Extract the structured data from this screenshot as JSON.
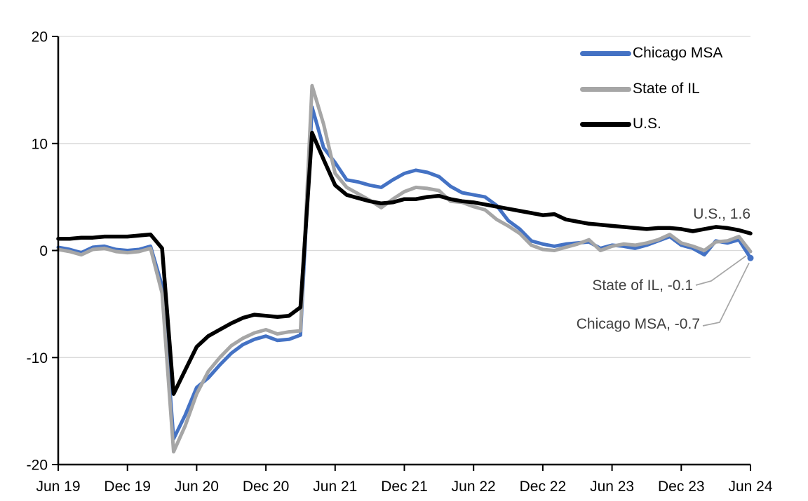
{
  "chart_data": {
    "type": "line",
    "title": "",
    "frequency": "monthly",
    "x_start": "Jun 2019",
    "x_end": "Jun 2024",
    "x_range_months": 60,
    "ylim": [
      -20,
      20
    ],
    "y_ticks": [
      20,
      10,
      0,
      -10,
      -20
    ],
    "y_tick_labels": [
      "20",
      "10",
      "0",
      "-10",
      "-20"
    ],
    "x_tick_labels": [
      "Jun 19",
      "Dec 19",
      "Jun 20",
      "Dec 20",
      "Jun 21",
      "Dec 21",
      "Jun 22",
      "Dec 22",
      "Jun 23",
      "Dec 23",
      "Jun 24"
    ],
    "grid": true,
    "legend_position": "top-right",
    "colors": {
      "grid": "#D9D9D9",
      "axis": "#000000",
      "leader": "#A6A6A6",
      "annotation_text": "#404040"
    },
    "series": [
      {
        "name": "Chicago MSA",
        "color": "#4472C4",
        "stroke_width": 5,
        "end_dot": true,
        "values": [
          0.3,
          0.1,
          -0.2,
          0.3,
          0.4,
          0.1,
          0.0,
          0.1,
          0.4,
          -3.3,
          -17.6,
          -15.4,
          -12.8,
          -11.9,
          -10.7,
          -9.6,
          -8.8,
          -8.3,
          -8.0,
          -8.4,
          -8.3,
          -7.9,
          13.4,
          9.6,
          8.2,
          6.6,
          6.4,
          6.1,
          5.9,
          6.6,
          7.2,
          7.5,
          7.3,
          6.9,
          6.0,
          5.4,
          5.2,
          5.0,
          4.2,
          2.8,
          2.0,
          0.9,
          0.6,
          0.4,
          0.6,
          0.7,
          0.8,
          0.2,
          0.5,
          0.4,
          0.2,
          0.5,
          0.9,
          1.3,
          0.5,
          0.2,
          -0.4,
          0.9,
          0.7,
          1.0,
          -0.7
        ]
      },
      {
        "name": "State of IL",
        "color": "#A6A6A6",
        "stroke_width": 5,
        "end_dot": false,
        "values": [
          0.1,
          -0.1,
          -0.4,
          0.1,
          0.2,
          -0.1,
          -0.2,
          -0.1,
          0.2,
          -4.0,
          -18.8,
          -16.4,
          -13.4,
          -11.3,
          -10.0,
          -8.9,
          -8.2,
          -7.7,
          -7.4,
          -7.8,
          -7.6,
          -7.5,
          15.4,
          11.8,
          7.2,
          5.9,
          5.3,
          4.7,
          4.0,
          4.8,
          5.5,
          5.9,
          5.8,
          5.6,
          4.6,
          4.5,
          4.1,
          3.8,
          2.9,
          2.3,
          1.6,
          0.5,
          0.1,
          0.0,
          0.3,
          0.6,
          1.0,
          0.0,
          0.4,
          0.6,
          0.5,
          0.7,
          1.0,
          1.5,
          0.7,
          0.4,
          0.0,
          0.8,
          0.9,
          1.3,
          -0.1
        ]
      },
      {
        "name": "U.S.",
        "color": "#000000",
        "stroke_width": 5.5,
        "end_dot": false,
        "values": [
          1.1,
          1.1,
          1.2,
          1.2,
          1.3,
          1.3,
          1.3,
          1.4,
          1.5,
          0.2,
          -13.4,
          -11.2,
          -9.0,
          -8.0,
          -7.4,
          -6.8,
          -6.3,
          -6.0,
          -6.1,
          -6.2,
          -6.1,
          -5.3,
          11.0,
          8.5,
          6.1,
          5.2,
          4.9,
          4.6,
          4.4,
          4.5,
          4.8,
          4.8,
          5.0,
          5.1,
          4.8,
          4.6,
          4.5,
          4.3,
          4.1,
          3.9,
          3.7,
          3.5,
          3.3,
          3.4,
          2.9,
          2.7,
          2.5,
          2.4,
          2.3,
          2.2,
          2.1,
          2.0,
          2.1,
          2.1,
          2.0,
          1.8,
          2.0,
          2.2,
          2.1,
          1.9,
          1.6
        ]
      }
    ],
    "end_labels": [
      {
        "series": "U.S.",
        "text": "U.S., 1.6",
        "value": 1.6
      },
      {
        "series": "State of IL",
        "text": "State of IL, -0.1",
        "value": -0.1
      },
      {
        "series": "Chicago MSA",
        "text": "Chicago MSA, -0.7",
        "value": -0.7
      }
    ]
  },
  "legend": {
    "items": [
      {
        "label": "Chicago MSA",
        "color": "#4472C4"
      },
      {
        "label": "State of IL",
        "color": "#A6A6A6"
      },
      {
        "label": "U.S.",
        "color": "#000000"
      }
    ]
  },
  "annotations": {
    "us": {
      "text": "U.S., 1.6"
    },
    "il": {
      "text": "State of IL, -0.1"
    },
    "chicago": {
      "text": "Chicago MSA, -0.7"
    }
  }
}
